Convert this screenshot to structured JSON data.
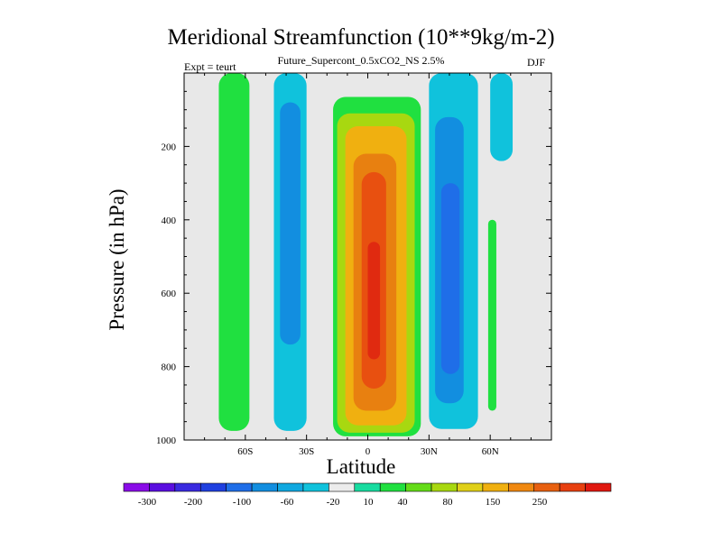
{
  "chart_data": {
    "type": "heatmap",
    "title": "Meridional Streamfunction (10**9kg/m-2)",
    "subtitle": "Future_Supercont_0.5xCO2_NS 2.5%",
    "left_annotation": "Expt = teurt",
    "right_annotation": "DJF",
    "xlabel": "Latitude",
    "ylabel": "Pressure (in hPa)",
    "x_ticks": [
      {
        "value": -60,
        "label": "60S"
      },
      {
        "value": -30,
        "label": "30S"
      },
      {
        "value": 0,
        "label": "0"
      },
      {
        "value": 30,
        "label": "30N"
      },
      {
        "value": 60,
        "label": "60N"
      }
    ],
    "y_ticks": [
      {
        "value": 200,
        "label": "200"
      },
      {
        "value": 400,
        "label": "400"
      },
      {
        "value": 600,
        "label": "600"
      },
      {
        "value": 800,
        "label": "800"
      },
      {
        "value": 1000,
        "label": "1000"
      }
    ],
    "xlim": [
      -90,
      90
    ],
    "ylim": [
      1000,
      0
    ],
    "colorbar": {
      "labels": [
        "-300",
        "-200",
        "-100",
        "-60",
        "-20",
        "10",
        "40",
        "80",
        "150",
        "250"
      ],
      "colors": [
        "#8a0ce8",
        "#5a0fe0",
        "#3a2ae0",
        "#1f40e0",
        "#1f6ee8",
        "#128ee0",
        "#10a8e0",
        "#10c2dc",
        "#ececec",
        "#18dca0",
        "#20e040",
        "#64dc18",
        "#a8d810",
        "#e0d018",
        "#f0b010",
        "#f08810",
        "#e86010",
        "#e84010",
        "#e01810"
      ]
    },
    "fields": [
      {
        "name": "sh-positive-cell",
        "level": 10,
        "lat_range": [
          -73,
          -58
        ],
        "p_range": [
          0,
          975
        ]
      },
      {
        "name": "sh-negative-cell-a",
        "level": -20,
        "lat_range": [
          -46,
          -30
        ],
        "p_range": [
          0,
          975
        ]
      },
      {
        "name": "sh-negative-cell-b",
        "level": -60,
        "lat_range": [
          -43,
          -33
        ],
        "p_range": [
          80,
          740
        ]
      },
      {
        "name": "trop-cell-outer",
        "level": 10,
        "lat_range": [
          -17,
          26
        ],
        "p_range": [
          65,
          990
        ]
      },
      {
        "name": "trop-cell-40",
        "level": 40,
        "lat_range": [
          -15,
          23
        ],
        "p_range": [
          110,
          980
        ]
      },
      {
        "name": "trop-cell-80",
        "level": 80,
        "lat_range": [
          -11,
          19
        ],
        "p_range": [
          145,
          960
        ]
      },
      {
        "name": "trop-cell-150",
        "level": 150,
        "lat_range": [
          -7,
          14
        ],
        "p_range": [
          220,
          920
        ]
      },
      {
        "name": "trop-cell-250",
        "level": 250,
        "lat_range": [
          -3,
          9
        ],
        "p_range": [
          270,
          860
        ]
      },
      {
        "name": "trop-cell-max",
        "level": 300,
        "lat_range": [
          0,
          6
        ],
        "p_range": [
          460,
          780
        ]
      },
      {
        "name": "nh-negative-cell-a",
        "level": -20,
        "lat_range": [
          30,
          54
        ],
        "p_range": [
          0,
          970
        ]
      },
      {
        "name": "nh-negative-cell-b",
        "level": -60,
        "lat_range": [
          33,
          47
        ],
        "p_range": [
          120,
          900
        ]
      },
      {
        "name": "nh-negative-cell-c",
        "level": -100,
        "lat_range": [
          36,
          45
        ],
        "p_range": [
          300,
          820
        ]
      },
      {
        "name": "polar-negative-strip",
        "level": -20,
        "lat_range": [
          60,
          71
        ],
        "p_range": [
          0,
          240
        ]
      },
      {
        "name": "polar-positive-strip",
        "level": 10,
        "lat_range": [
          59,
          63
        ],
        "p_range": [
          400,
          920
        ]
      }
    ]
  }
}
